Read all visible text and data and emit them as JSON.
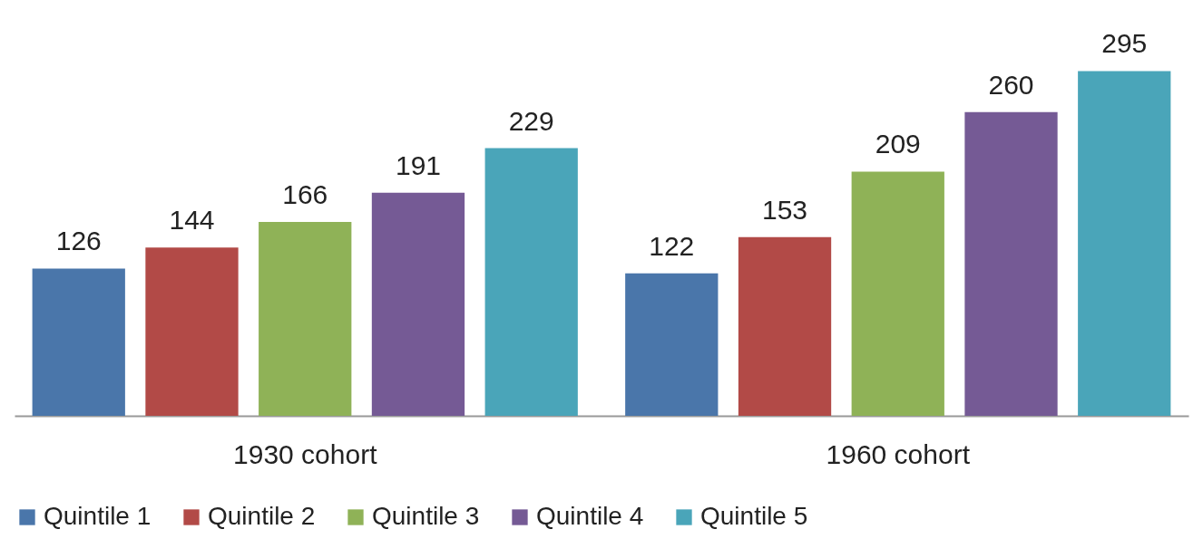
{
  "chart_data": {
    "type": "bar",
    "categories": [
      "1930 cohort",
      "1960 cohort"
    ],
    "series": [
      {
        "name": "Quintile 1",
        "color": "#4a76aa",
        "values": [
          126,
          122
        ]
      },
      {
        "name": "Quintile 2",
        "color": "#b24a47",
        "values": [
          144,
          153
        ]
      },
      {
        "name": "Quintile 3",
        "color": "#8fb257",
        "values": [
          166,
          209
        ]
      },
      {
        "name": "Quintile 4",
        "color": "#755a95",
        "values": [
          191,
          260
        ]
      },
      {
        "name": "Quintile 5",
        "color": "#4aa5b9",
        "values": [
          229,
          295
        ]
      }
    ],
    "data_labels": true,
    "legend": "bottom"
  }
}
